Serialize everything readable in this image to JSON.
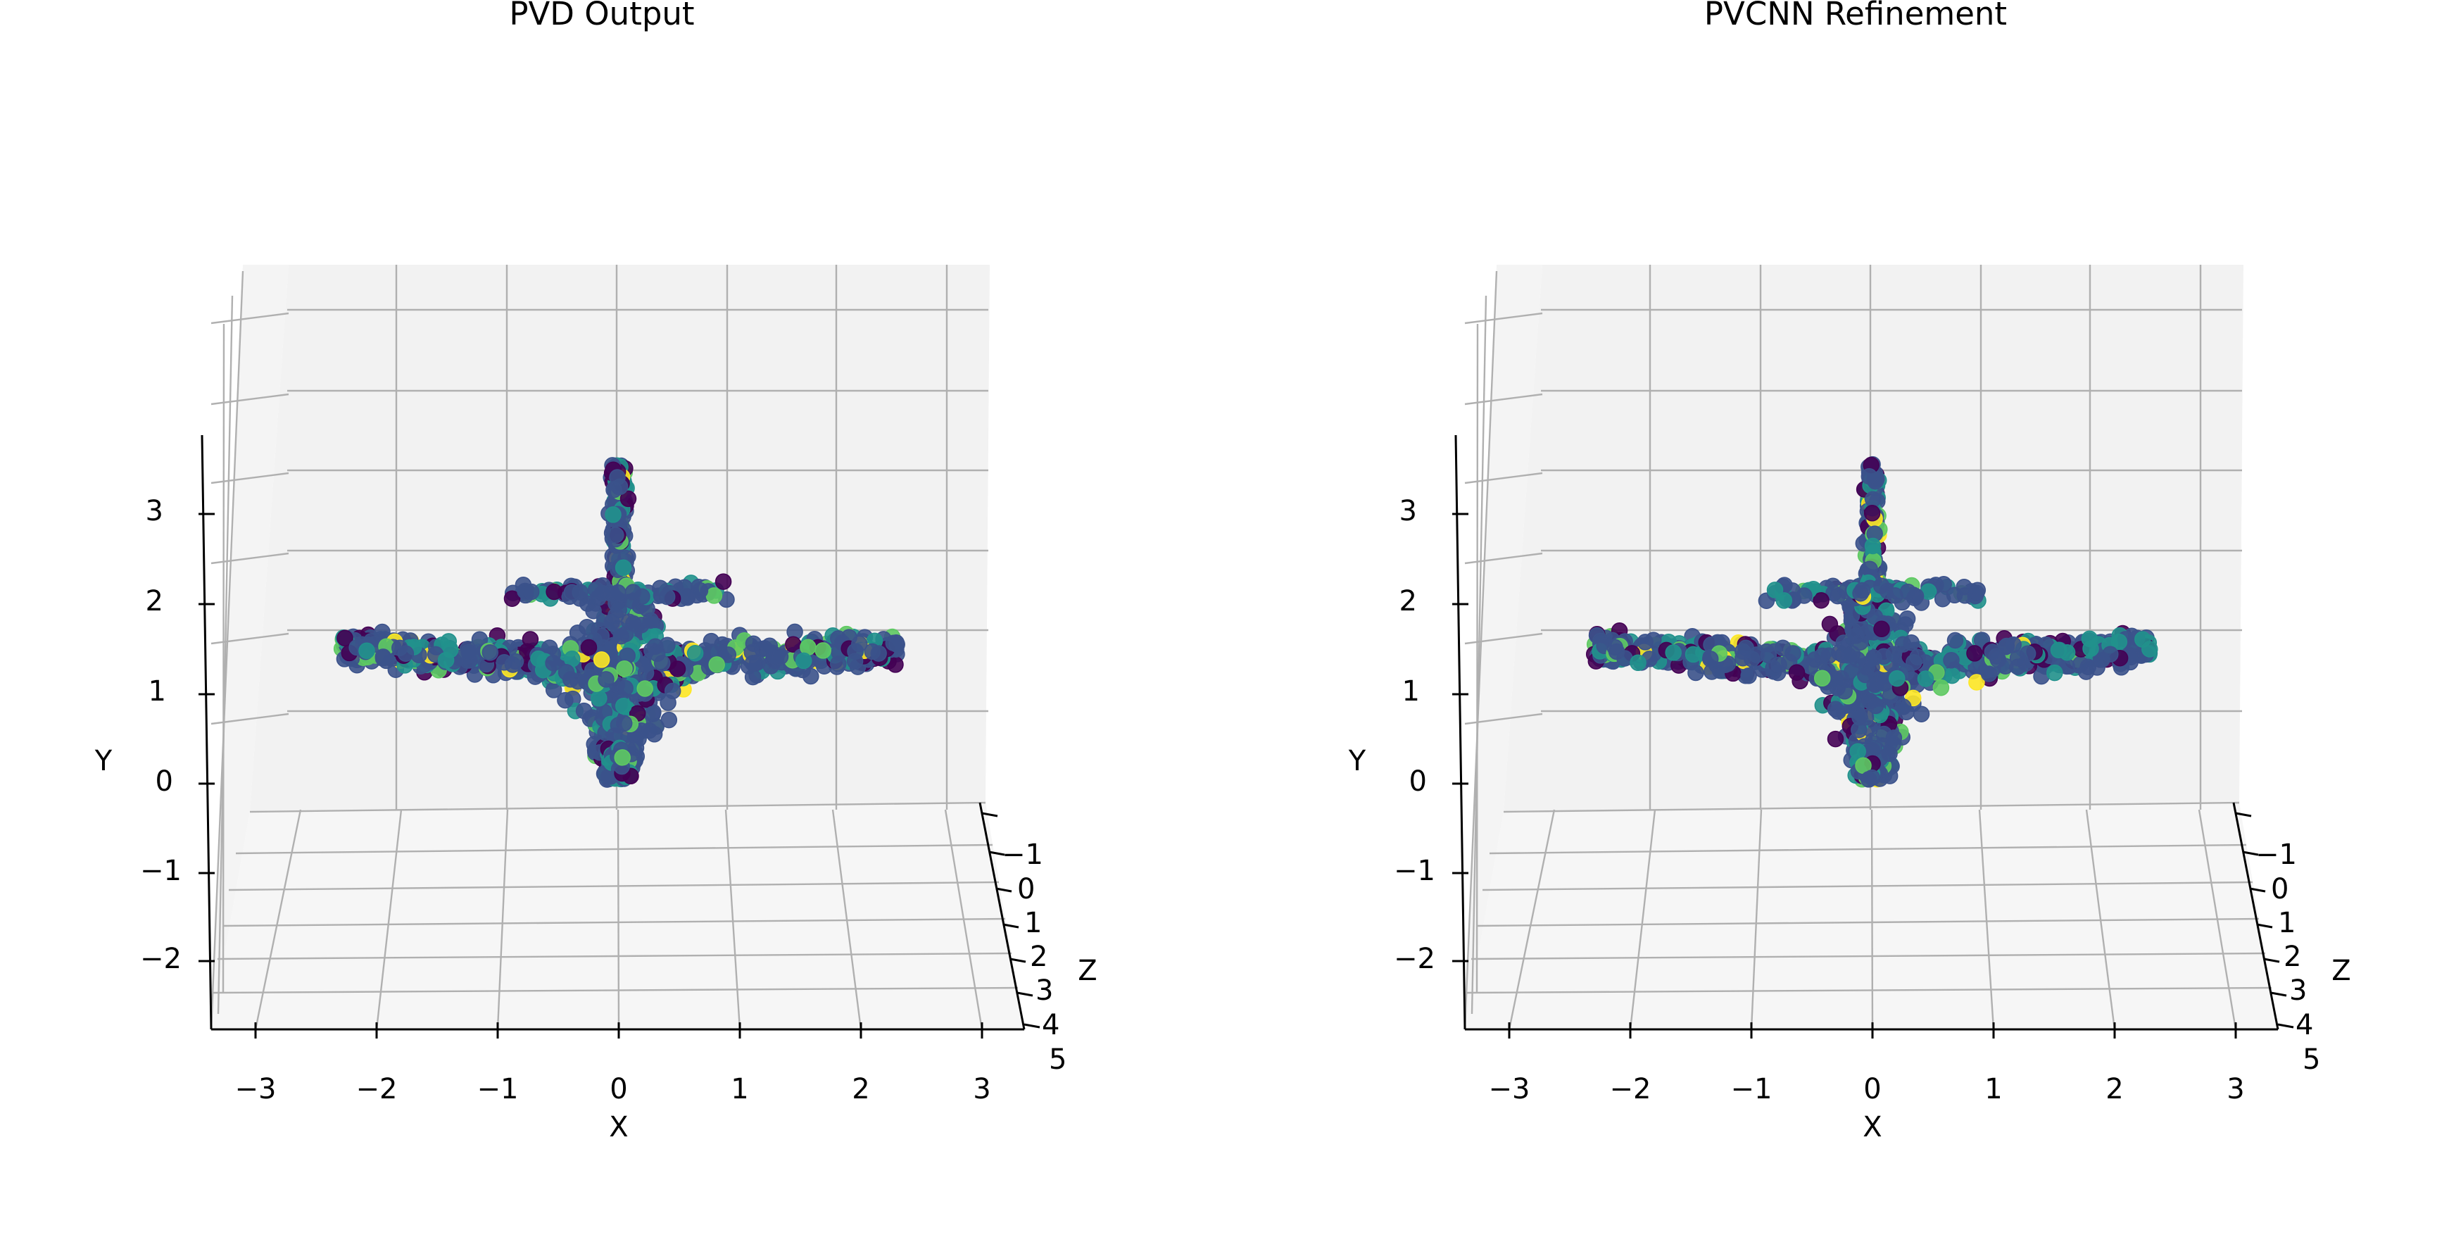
{
  "colors": {
    "pane_back": "#f2f2f2",
    "pane_side": "#f4f4f4",
    "pane_floor": "#f6f6f6",
    "grid": "#b0b0b0",
    "axis": "#000000",
    "viridis": [
      "#440154",
      "#3b528b",
      "#21918c",
      "#5ec962",
      "#fde725"
    ]
  },
  "chart_data": [
    {
      "type": "scatter",
      "subtype": "3d-point-cloud",
      "title": "PVD Output",
      "xlabel": "X",
      "ylabel": "Y",
      "zlabel": "Z",
      "x_ticks": [
        "−3",
        "−2",
        "−1",
        "0",
        "1",
        "2",
        "3"
      ],
      "y_ticks": [
        "−2",
        "−1",
        "0",
        "1",
        "2",
        "3"
      ],
      "z_ticks": [
        "−1",
        "0",
        "1",
        "2",
        "3",
        "4",
        "5"
      ],
      "xlim": [
        -3.4,
        3.1
      ],
      "ylim": [
        -2.8,
        3.8
      ],
      "zlim": [
        -1.5,
        4.2
      ],
      "grid": true,
      "colormap": "viridis",
      "seed": 7,
      "approx_point_count": 1500
    },
    {
      "type": "scatter",
      "subtype": "3d-point-cloud",
      "title": "PVCNN Refinement",
      "xlabel": "X",
      "ylabel": "Y",
      "zlabel": "Z",
      "x_ticks": [
        "−3",
        "−2",
        "−1",
        "0",
        "1",
        "2",
        "3"
      ],
      "y_ticks": [
        "−2",
        "−1",
        "0",
        "1",
        "2",
        "3"
      ],
      "z_ticks": [
        "−1",
        "0",
        "1",
        "2",
        "3",
        "4",
        "5"
      ],
      "xlim": [
        -3.4,
        3.1
      ],
      "ylim": [
        -2.8,
        3.8
      ],
      "zlim": [
        -1.5,
        4.2
      ],
      "grid": true,
      "colormap": "viridis",
      "seed": 19,
      "approx_point_count": 1500
    }
  ]
}
